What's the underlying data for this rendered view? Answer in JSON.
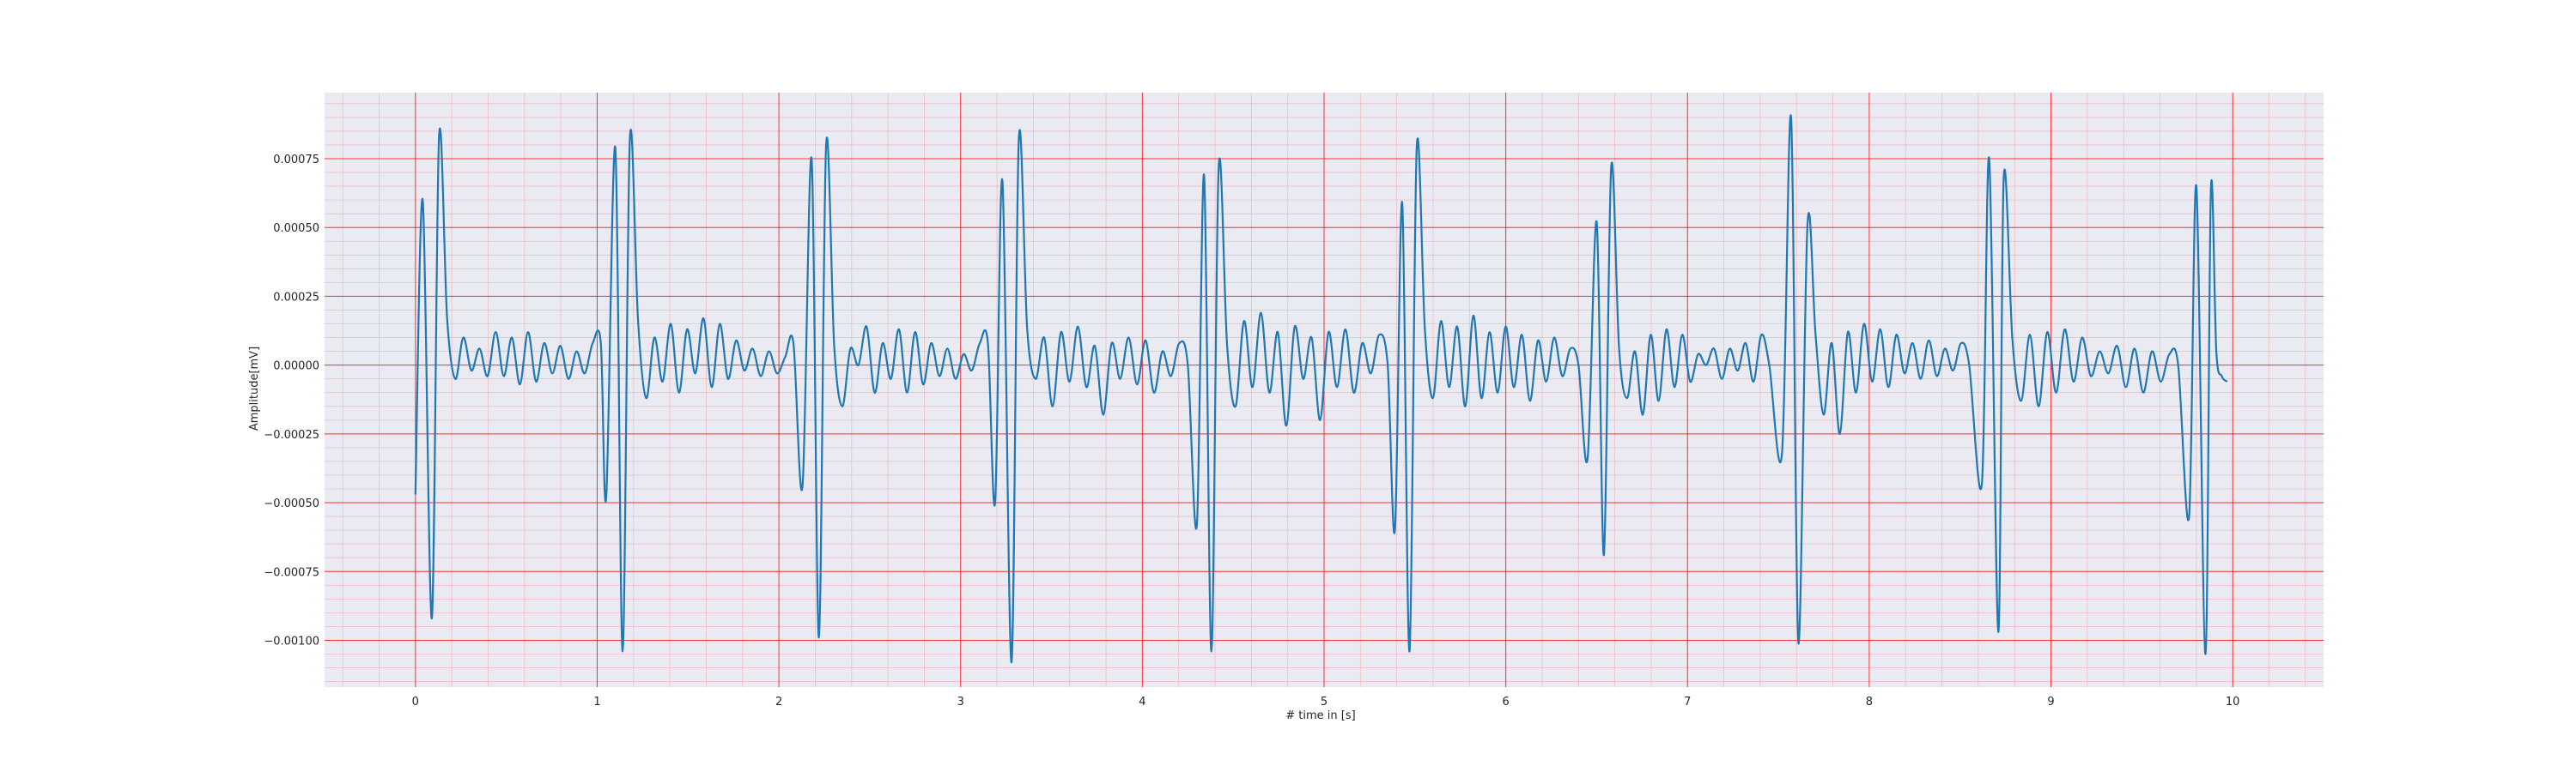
{
  "chart_data": {
    "type": "line",
    "title": "",
    "xlabel": "# time in [s]",
    "ylabel": "Amplitude[mV]",
    "xlim": [
      -0.5,
      10.5
    ],
    "ylim": [
      -0.00117,
      0.00099
    ],
    "xticks": [
      0,
      1,
      2,
      3,
      4,
      5,
      6,
      7,
      8,
      9,
      10
    ],
    "xtick_labels": [
      "0",
      "1",
      "2",
      "3",
      "4",
      "5",
      "6",
      "7",
      "8",
      "9",
      "10"
    ],
    "yticks": [
      0.00075,
      0.0005,
      0.00025,
      0.0,
      -0.00025,
      -0.0005,
      -0.00075,
      -0.001
    ],
    "ytick_labels": [
      "0.00075",
      "0.00050",
      "0.00025",
      "0.00000",
      "−0.00025",
      "−0.00050",
      "−0.00075",
      "−0.00100"
    ],
    "grid": true,
    "colors": {
      "background": "#eaeaf2",
      "major_grid": "#ff0000",
      "minor_grid": "#f4a0a8",
      "line": "#1f77b4"
    },
    "beats": [
      {
        "t": 0.0,
        "pre": -0.00047,
        "p1": 0.0006,
        "t1": 0.04,
        "v": -0.00092,
        "tv": 0.09,
        "p2": 0.00083,
        "t2": 0.13,
        "n": -5e-05
      },
      {
        "t": 1.02,
        "pre": 8e-05,
        "n1": -0.00048,
        "tn1": 1.05,
        "p1": 0.00079,
        "t1": 1.1,
        "v": -0.00104,
        "tv": 1.14,
        "p2": 0.00082,
        "t2": 1.18,
        "n": -6e-05
      },
      {
        "t": 2.08,
        "pre": 8e-05,
        "n1": -0.00044,
        "tn1": 2.13,
        "p1": 0.00075,
        "t1": 2.18,
        "v": -0.00099,
        "tv": 2.22,
        "p2": 0.0008,
        "t2": 2.26,
        "n": 4e-05
      },
      {
        "t": 3.15,
        "pre": 8e-05,
        "n1": -0.0005,
        "tn1": 3.19,
        "p1": 0.00067,
        "t1": 3.23,
        "v": -0.00108,
        "tv": 3.28,
        "p2": 0.00082,
        "t2": 3.32,
        "n": 0.00014
      },
      {
        "t": 4.25,
        "pre": 0.0,
        "n1": -0.00058,
        "tn1": 4.3,
        "p1": 0.00069,
        "t1": 4.34,
        "v": -0.00104,
        "tv": 4.38,
        "p2": 0.00072,
        "t2": 4.42,
        "n": 5e-05
      },
      {
        "t": 5.35,
        "pre": 0.0,
        "n1": -0.0006,
        "tn1": 5.39,
        "p1": 0.00059,
        "t1": 5.43,
        "v": -0.00104,
        "tv": 5.47,
        "p2": 0.00079,
        "t2": 5.51,
        "n": 0.0001
      },
      {
        "t": 6.4,
        "pre": 0.0,
        "n1": -0.00034,
        "tn1": 6.45,
        "p1": 0.00052,
        "t1": 6.5,
        "v": -0.00069,
        "tv": 6.54,
        "p2": 0.00072,
        "t2": 6.58,
        "n": 5e-05
      },
      {
        "t": 7.45,
        "pre": 0.0,
        "n1": -0.00032,
        "tn1": 7.52,
        "p1": 0.0009,
        "t1": 7.57,
        "v": -0.00101,
        "tv": 7.61,
        "p2": 0.00051,
        "t2": 7.66,
        "n": 0.0001
      },
      {
        "t": 8.55,
        "pre": 0.0,
        "n1": -0.00043,
        "tn1": 8.62,
        "p1": 0.00075,
        "t1": 8.66,
        "v": -0.00097,
        "tv": 8.71,
        "p2": 0.00068,
        "t2": 8.74,
        "n": 5e-05
      },
      {
        "t": 9.7,
        "pre": 0.0,
        "n1": -0.00055,
        "tn1": 9.76,
        "p1": 0.00065,
        "t1": 9.8,
        "v": -0.00105,
        "tv": 9.85,
        "p2": 0.00064,
        "t2": 9.88,
        "n": 0.0
      }
    ],
    "segments": [
      {
        "from": 0.13,
        "to": 1.02,
        "values": [
          0.00017,
          -5e-05,
          0.0001,
          -2e-05,
          6e-05,
          -4e-05,
          0.00012,
          -4e-05,
          0.0001,
          -7e-05,
          0.00012,
          -6e-05,
          8e-05,
          -3e-05,
          7e-05,
          -5e-05,
          5e-05,
          -3e-05,
          8e-05
        ]
      },
      {
        "from": 1.18,
        "to": 2.08,
        "values": [
          0.00016,
          -0.00012,
          0.0001,
          -6e-05,
          0.00015,
          -0.0001,
          0.00013,
          -3e-05,
          0.00017,
          -8e-05,
          0.00015,
          -5e-05,
          9e-05,
          -2e-05,
          6e-05,
          -4e-05,
          5e-05,
          -3e-05,
          3e-05
        ]
      },
      {
        "from": 2.26,
        "to": 3.15,
        "values": [
          7e-05,
          -0.00015,
          6e-05,
          0.0,
          0.00014,
          -0.0001,
          8e-05,
          -5e-05,
          0.00013,
          -0.0001,
          0.00012,
          -7e-05,
          8e-05,
          -4e-05,
          6e-05,
          -5e-05,
          4e-05,
          -2e-05,
          8e-05
        ]
      },
      {
        "from": 3.32,
        "to": 4.25,
        "values": [
          0.00013,
          -5e-05,
          0.0001,
          -0.00015,
          0.00012,
          -6e-05,
          0.00014,
          -8e-05,
          7e-05,
          -0.00018,
          8e-05,
          -5e-05,
          0.0001,
          -7e-05,
          9e-05,
          -0.0001,
          5e-05,
          -4e-05,
          8e-05
        ]
      },
      {
        "from": 4.42,
        "to": 5.35,
        "values": [
          7e-05,
          -0.00015,
          0.00016,
          -8e-05,
          0.00019,
          -0.0001,
          0.00012,
          -0.00022,
          0.00014,
          -5e-05,
          0.0001,
          -0.0002,
          0.00012,
          -8e-05,
          0.00013,
          -0.0001,
          8e-05,
          -3e-05,
          0.00011
        ]
      },
      {
        "from": 5.51,
        "to": 6.4,
        "values": [
          0.00013,
          -0.00012,
          0.00016,
          -8e-05,
          0.00014,
          -0.00015,
          0.00018,
          -0.00012,
          0.00012,
          -0.0001,
          0.00014,
          -8e-05,
          0.00011,
          -0.00013,
          9e-05,
          -6e-05,
          0.0001,
          -4e-05,
          6e-05
        ]
      },
      {
        "from": 6.58,
        "to": 7.45,
        "values": [
          6e-05,
          -0.00012,
          5e-05,
          -0.00018,
          0.00011,
          -0.00013,
          0.00013,
          -8e-05,
          0.00011,
          -6e-05,
          4e-05,
          0.0,
          6e-05,
          -5e-05,
          6e-05,
          -2e-05,
          8e-05,
          -6e-05,
          0.00011
        ]
      },
      {
        "from": 7.66,
        "to": 8.55,
        "values": [
          0.00011,
          -0.00018,
          8e-05,
          -0.00025,
          0.00012,
          -0.0001,
          0.00015,
          -6e-05,
          0.00013,
          -8e-05,
          0.00011,
          -3e-05,
          8e-05,
          -5e-05,
          9e-05,
          -4e-05,
          6e-05,
          -2e-05,
          8e-05
        ]
      },
      {
        "from": 8.74,
        "to": 9.7,
        "values": [
          9e-05,
          -0.00013,
          0.00011,
          -0.00015,
          0.00012,
          -0.0001,
          0.00013,
          -6e-05,
          0.0001,
          -4e-05,
          5e-05,
          -3e-05,
          7e-05,
          -8e-05,
          6e-05,
          -0.0001,
          5e-05,
          -6e-05,
          4e-05
        ]
      },
      {
        "from": 9.88,
        "to": 10.0,
        "values": [
          5e-05,
          -4e-05,
          -6e-05
        ]
      }
    ]
  }
}
